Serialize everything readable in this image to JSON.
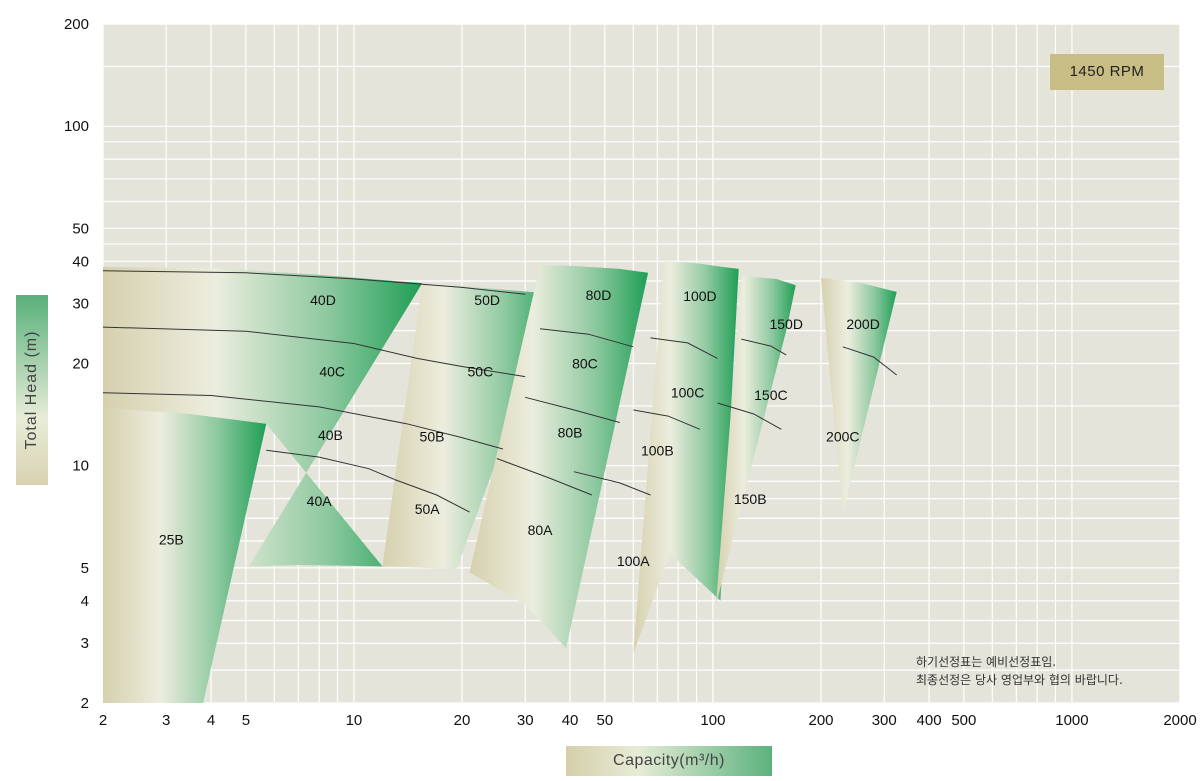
{
  "chart_data": {
    "type": "area",
    "title": "",
    "xlabel": "Capacity(m³/h)",
    "ylabel": "Total Head (m)",
    "x_scale": "log",
    "y_scale": "log",
    "xlim": [
      2,
      2000
    ],
    "ylim": [
      2,
      200
    ],
    "x_ticks": [
      "2",
      "3",
      "4",
      "5",
      "10",
      "20",
      "30",
      "40",
      "50",
      "100",
      "200",
      "300",
      "400",
      "500",
      "1000",
      "2000"
    ],
    "y_ticks": [
      "2",
      "3",
      "4",
      "5",
      "10",
      "20",
      "30",
      "40",
      "50",
      "100",
      "200"
    ],
    "grid": true,
    "badge": "1450 RPM",
    "note_lines": [
      "하기선정표는 예비선정표임.",
      "최종선정은 당사 영업부와 협의 바랍니다."
    ],
    "colors": {
      "plot_bg": "#e4e4da",
      "grid": "#ffffff",
      "zone_tan": "#d6d0ae",
      "zone_green": "#22a45a",
      "badge": "#c8bd85"
    },
    "regions": [
      {
        "name": "25B",
        "label_at": [
          3.1,
          6.0
        ],
        "polygon": [
          [
            2,
            14.8
          ],
          [
            2.5,
            14.6
          ],
          [
            3.5,
            14.2
          ],
          [
            5.7,
            13.3
          ],
          [
            3.8,
            2
          ],
          [
            2,
            2
          ]
        ]
      },
      {
        "name": "40",
        "polygon": [
          [
            2,
            38.5
          ],
          [
            4,
            38.2
          ],
          [
            8,
            36.5
          ],
          [
            13,
            35
          ],
          [
            15.5,
            34.5
          ],
          [
            5.1,
            5.05
          ],
          [
            7,
            5.1
          ],
          [
            12,
            5.05
          ],
          [
            5.7,
            13.3
          ],
          [
            3.5,
            14.2
          ],
          [
            2,
            14.8
          ]
        ]
      },
      {
        "name": "50",
        "polygon": [
          [
            15.5,
            34.5
          ],
          [
            20,
            33.8
          ],
          [
            30,
            32.6
          ],
          [
            37,
            32
          ],
          [
            19.3,
            4.95
          ],
          [
            13,
            5.05
          ],
          [
            12,
            5.05
          ]
        ]
      },
      {
        "name": "80",
        "polygon": [
          [
            33,
            39
          ],
          [
            40,
            38.8
          ],
          [
            55,
            38
          ],
          [
            66,
            37
          ],
          [
            39,
            2.9
          ],
          [
            30,
            3.9
          ],
          [
            21,
            4.85
          ]
        ]
      },
      {
        "name": "100",
        "polygon": [
          [
            73,
            40
          ],
          [
            90,
            39.5
          ],
          [
            106,
            38.5
          ],
          [
            118,
            38
          ],
          [
            105,
            4.0
          ],
          [
            76,
            5.5
          ],
          [
            60,
            2.8
          ]
        ]
      },
      {
        "name": "150",
        "polygon": [
          [
            120,
            36.2
          ],
          [
            150,
            35.5
          ],
          [
            170,
            34
          ],
          [
            160,
            25
          ],
          [
            102,
            3.9
          ]
        ]
      },
      {
        "name": "200",
        "polygon": [
          [
            200,
            35.8
          ],
          [
            260,
            34.5
          ],
          [
            325,
            32.5
          ],
          [
            230,
            7.2
          ]
        ]
      }
    ],
    "boundaries": [
      {
        "points": [
          [
            2,
            37.5
          ],
          [
            5,
            37
          ],
          [
            10,
            35.5
          ],
          [
            20,
            33.5
          ],
          [
            30,
            32
          ]
        ]
      },
      {
        "points": [
          [
            2,
            25.6
          ],
          [
            5,
            24.9
          ],
          [
            10,
            22.9
          ],
          [
            15,
            20.7
          ]
        ]
      },
      {
        "points": [
          [
            15,
            20.7
          ],
          [
            20,
            19.6
          ],
          [
            30,
            18.3
          ]
        ]
      },
      {
        "points": [
          [
            2,
            16.4
          ],
          [
            4,
            16.1
          ],
          [
            8,
            14.9
          ],
          [
            14,
            13.3
          ]
        ]
      },
      {
        "points": [
          [
            14,
            13.3
          ],
          [
            20,
            12.1
          ],
          [
            26,
            11.2
          ]
        ]
      },
      {
        "points": [
          [
            5.7,
            11.1
          ],
          [
            8,
            10.6
          ],
          [
            11,
            9.8
          ],
          [
            13,
            9.1
          ]
        ]
      },
      {
        "points": [
          [
            13,
            9.1
          ],
          [
            17,
            8.2
          ],
          [
            21,
            7.3
          ]
        ]
      },
      {
        "points": [
          [
            33,
            25.3
          ],
          [
            45,
            24.4
          ],
          [
            60,
            22.4
          ]
        ]
      },
      {
        "points": [
          [
            30,
            15.9
          ],
          [
            40,
            14.7
          ],
          [
            55,
            13.4
          ]
        ]
      },
      {
        "points": [
          [
            25,
            10.5
          ],
          [
            35,
            9.2
          ],
          [
            46,
            8.2
          ]
        ]
      },
      {
        "points": [
          [
            41,
            9.6
          ],
          [
            55,
            8.9
          ],
          [
            67,
            8.2
          ]
        ]
      },
      {
        "points": [
          [
            67,
            23.8
          ],
          [
            85,
            23.0
          ],
          [
            103,
            20.7
          ]
        ]
      },
      {
        "points": [
          [
            60,
            14.6
          ],
          [
            75,
            14.0
          ],
          [
            92,
            12.8
          ]
        ]
      },
      {
        "points": [
          [
            120,
            23.6
          ],
          [
            145,
            22.5
          ],
          [
            160,
            21.2
          ]
        ]
      },
      {
        "points": [
          [
            103,
            15.3
          ],
          [
            130,
            14.2
          ],
          [
            155,
            12.8
          ]
        ]
      },
      {
        "points": [
          [
            230,
            22.4
          ],
          [
            280,
            20.9
          ],
          [
            325,
            18.5
          ]
        ]
      }
    ],
    "labels": [
      {
        "text": "25B",
        "x": 3.1,
        "y": 6.0
      },
      {
        "text": "40D",
        "x": 8.2,
        "y": 30.5
      },
      {
        "text": "40C",
        "x": 8.7,
        "y": 18.8
      },
      {
        "text": "40B",
        "x": 8.6,
        "y": 12.2
      },
      {
        "text": "40A",
        "x": 8.0,
        "y": 7.8
      },
      {
        "text": "50D",
        "x": 23.5,
        "y": 30.5
      },
      {
        "text": "50C",
        "x": 22.5,
        "y": 18.8
      },
      {
        "text": "50B",
        "x": 16.5,
        "y": 12.1
      },
      {
        "text": "50A",
        "x": 16.0,
        "y": 7.4
      },
      {
        "text": "80D",
        "x": 48,
        "y": 31.6
      },
      {
        "text": "80C",
        "x": 44,
        "y": 19.8
      },
      {
        "text": "80B",
        "x": 40,
        "y": 12.4
      },
      {
        "text": "80A",
        "x": 33,
        "y": 6.4
      },
      {
        "text": "100D",
        "x": 92,
        "y": 31.3
      },
      {
        "text": "100C",
        "x": 85,
        "y": 16.3
      },
      {
        "text": "100B",
        "x": 70,
        "y": 11.0
      },
      {
        "text": "100A",
        "x": 60,
        "y": 5.2
      },
      {
        "text": "150D",
        "x": 160,
        "y": 25.9
      },
      {
        "text": "150C",
        "x": 145,
        "y": 16.0
      },
      {
        "text": "150B",
        "x": 127,
        "y": 7.9
      },
      {
        "text": "200D",
        "x": 262,
        "y": 25.9
      },
      {
        "text": "200C",
        "x": 230,
        "y": 12.1
      }
    ]
  }
}
